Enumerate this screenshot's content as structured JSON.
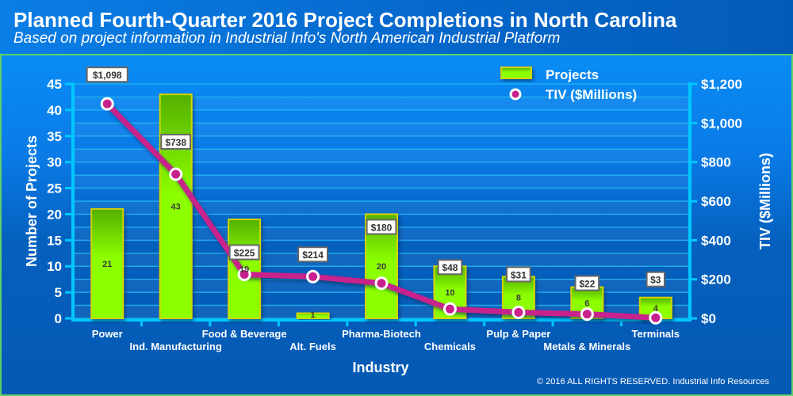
{
  "header": {
    "title": "Planned Fourth-Quarter 2016 Project Completions in North Carolina",
    "subtitle": "Based on project information in Industrial Info's North American Industrial Platform"
  },
  "footer": {
    "copyright": "© 2016 ALL RIGHTS RESERVED. Industrial Info Resources"
  },
  "colors": {
    "bar": "#8cff00",
    "bar_top": "#55b000",
    "bar_border": "#d4d400",
    "line": "#c8208c",
    "axis": "#00c8ff",
    "frame_border": "#5fd06a"
  },
  "chart_data": {
    "type": "bar+line",
    "title": "Planned Fourth-Quarter 2016 Project Completions in North Carolina",
    "subtitle": "Based on project information in Industrial Info's North American Industrial Platform",
    "xlabel": "Industry",
    "ylabel": "Number of Projects",
    "y2label": "TIV ($Millions)",
    "categories": [
      "Power",
      "Ind. Manufacturing",
      "Food & Beverage",
      "Alt. Fuels",
      "Pharma-Biotech",
      "Chemicals",
      "Pulp & Paper",
      "Metals & Minerals",
      "Terminals"
    ],
    "series": [
      {
        "name": "Projects",
        "type": "bar",
        "axis": "left",
        "values": [
          21,
          43,
          19,
          1,
          20,
          10,
          8,
          6,
          4
        ],
        "labels": [
          "21",
          "43",
          "19",
          "1",
          "20",
          "10",
          "8",
          "6",
          "4"
        ]
      },
      {
        "name": "TIV ($Millions)",
        "type": "line",
        "axis": "right",
        "values": [
          1098,
          738,
          225,
          214,
          180,
          48,
          31,
          22,
          3
        ],
        "labels": [
          "$1,098",
          "$738",
          "$225",
          "$214",
          "$180",
          "$48",
          "$31",
          "$22",
          "$3"
        ]
      }
    ],
    "ylim": [
      0,
      45
    ],
    "y2lim": [
      0,
      1200
    ],
    "yticks": [
      "0",
      "5",
      "10",
      "15",
      "20",
      "25",
      "30",
      "35",
      "40",
      "45"
    ],
    "y2ticks": [
      "$0",
      "$200",
      "$400",
      "$600",
      "$800",
      "$1,000",
      "$1,200"
    ],
    "legend": {
      "position": "top-right",
      "entries": [
        "Projects",
        "TIV ($Millions)"
      ]
    },
    "grid": true
  }
}
